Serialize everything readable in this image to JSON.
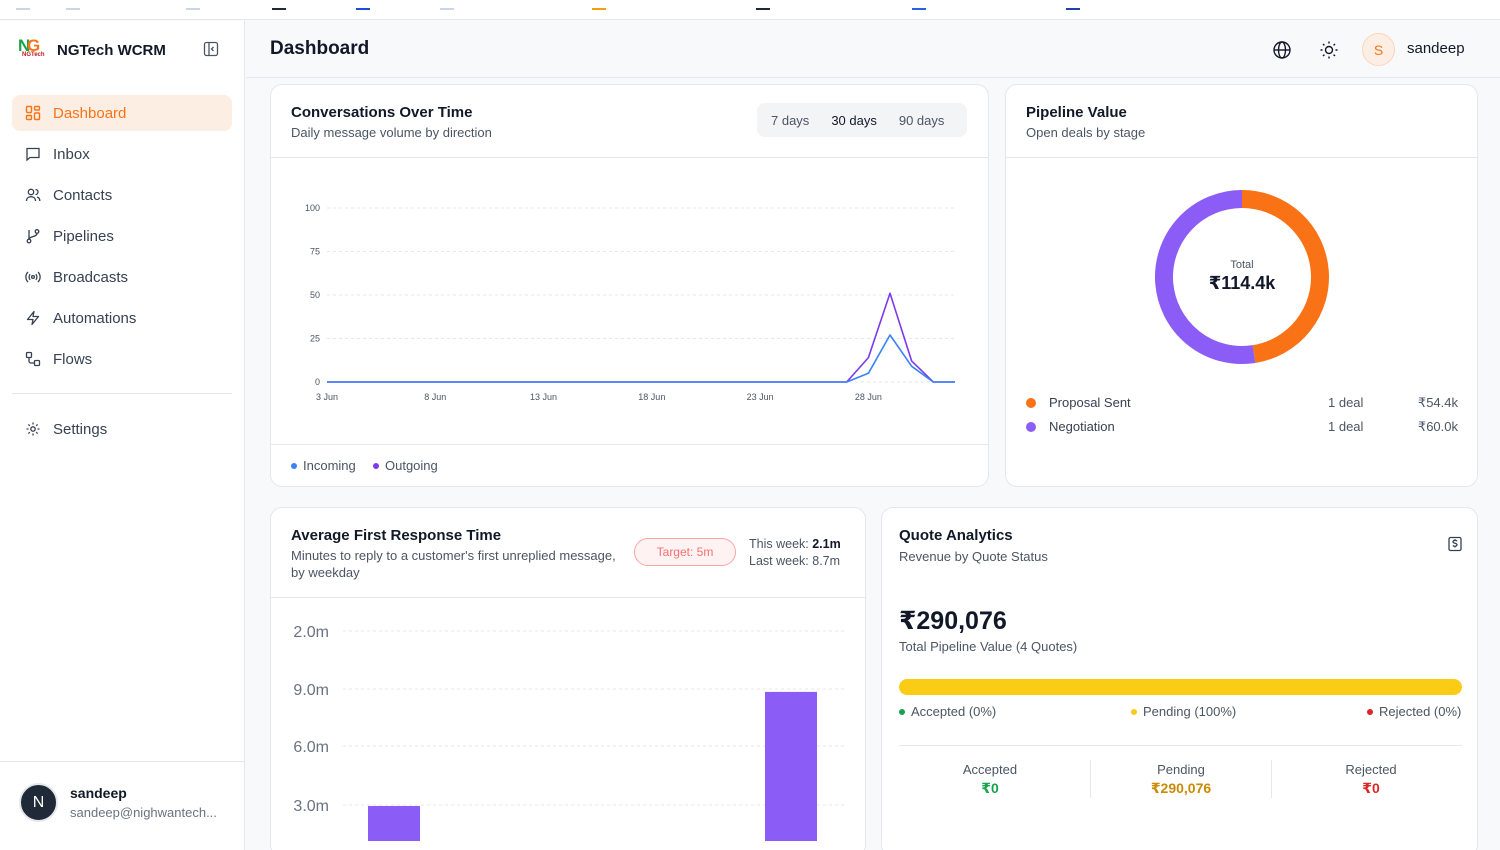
{
  "app": {
    "name": "NGTech WCRM"
  },
  "sidebar": {
    "items": [
      {
        "label": "Dashboard",
        "icon": "grid-icon",
        "active": true
      },
      {
        "label": "Inbox",
        "icon": "message-square-icon"
      },
      {
        "label": "Contacts",
        "icon": "users-icon"
      },
      {
        "label": "Pipelines",
        "icon": "git-branch-icon"
      },
      {
        "label": "Broadcasts",
        "icon": "radio-icon"
      },
      {
        "label": "Automations",
        "icon": "zap-icon"
      },
      {
        "label": "Flows",
        "icon": "workflow-icon"
      }
    ],
    "settings": {
      "label": "Settings",
      "icon": "gear-icon"
    },
    "user": {
      "initial": "N",
      "name": "sandeep",
      "email": "sandeep@nighwantech..."
    }
  },
  "header": {
    "title": "Dashboard",
    "user_initial": "S",
    "user_name": "sandeep"
  },
  "colors": {
    "accent": "#f97316",
    "incoming": "#3b82f6",
    "outgoing": "#7c3aed",
    "negotiation": "#8b5cf6",
    "pending": "#facc15",
    "accepted": "#16a34a",
    "rejected": "#dc2626"
  },
  "conversations": {
    "title": "Conversations Over Time",
    "subtitle": "Daily message volume by direction",
    "ranges": [
      "7 days",
      "30 days",
      "90 days"
    ],
    "active_range": "30 days",
    "legend": {
      "incoming": "Incoming",
      "outgoing": "Outgoing"
    }
  },
  "pipeline": {
    "title": "Pipeline Value",
    "subtitle": "Open deals by stage",
    "total_label": "Total",
    "total_value": "₹114.4k",
    "stages": [
      {
        "name": "Proposal Sent",
        "count": "1 deal",
        "value": "₹54.4k",
        "color": "#f97316"
      },
      {
        "name": "Negotiation",
        "count": "1 deal",
        "value": "₹60.0k",
        "color": "#8b5cf6"
      }
    ]
  },
  "response_time": {
    "title": "Average First Response Time",
    "subtitle_1": "Minutes to reply to a customer's first unreplied message,",
    "subtitle_2": "by weekday",
    "target": "Target: 5m",
    "this_week_label": "This week:",
    "this_week_value": "2.1m",
    "last_week_label": "Last week:",
    "last_week_value": "8.7m"
  },
  "quotes": {
    "title": "Quote Analytics",
    "subtitle": "Revenue by Quote Status",
    "total": "₹290,076",
    "total_sub": "Total Pipeline Value (4 Quotes)",
    "pending_fraction": 1.0,
    "legend": {
      "accepted": "Accepted (0%)",
      "pending": "Pending (100%)",
      "rejected": "Rejected (0%)"
    },
    "stats": [
      {
        "label": "Accepted",
        "value": "₹0",
        "color": "#16a34a"
      },
      {
        "label": "Pending",
        "value": "₹290,076",
        "color": "#ca8a04"
      },
      {
        "label": "Rejected",
        "value": "₹0",
        "color": "#dc2626"
      }
    ]
  },
  "chart_data": [
    {
      "type": "line",
      "x": [
        "3 Jun",
        "4 Jun",
        "5 Jun",
        "6 Jun",
        "7 Jun",
        "8 Jun",
        "9 Jun",
        "10 Jun",
        "11 Jun",
        "12 Jun",
        "13 Jun",
        "14 Jun",
        "15 Jun",
        "16 Jun",
        "17 Jun",
        "18 Jun",
        "19 Jun",
        "20 Jun",
        "21 Jun",
        "22 Jun",
        "23 Jun",
        "24 Jun",
        "25 Jun",
        "26 Jun",
        "27 Jun",
        "28 Jun",
        "29 Jun",
        "30 Jun",
        "1 Jul",
        "2 Jul"
      ],
      "x_tick_labels": [
        "3 Jun",
        "8 Jun",
        "13 Jun",
        "18 Jun",
        "23 Jun",
        "28 Jun"
      ],
      "series": [
        {
          "name": "Incoming",
          "values": [
            0,
            0,
            0,
            0,
            0,
            0,
            0,
            0,
            0,
            0,
            0,
            0,
            0,
            0,
            0,
            0,
            0,
            0,
            0,
            0,
            0,
            0,
            0,
            0,
            0,
            5,
            27,
            9,
            0,
            0
          ]
        },
        {
          "name": "Outgoing",
          "values": [
            0,
            0,
            0,
            0,
            0,
            0,
            0,
            0,
            0,
            0,
            0,
            0,
            0,
            0,
            0,
            0,
            0,
            0,
            0,
            0,
            0,
            0,
            0,
            0,
            0,
            14,
            51,
            12,
            0,
            0
          ]
        }
      ],
      "y_ticks": [
        0,
        25,
        50,
        75,
        100
      ],
      "ylim": [
        0,
        100
      ],
      "grid": true,
      "legend": "bottom-left"
    },
    {
      "type": "pie",
      "categories": [
        "Proposal Sent",
        "Negotiation"
      ],
      "values": [
        54.4,
        60.0
      ],
      "center_label": "Total",
      "center_value": "₹114.4k"
    },
    {
      "type": "bar",
      "y_tick_labels": [
        "2.0m",
        "9.0m",
        "6.0m",
        "3.0m"
      ],
      "values_visible": [
        2.9,
        8.7
      ],
      "grid": true
    }
  ]
}
